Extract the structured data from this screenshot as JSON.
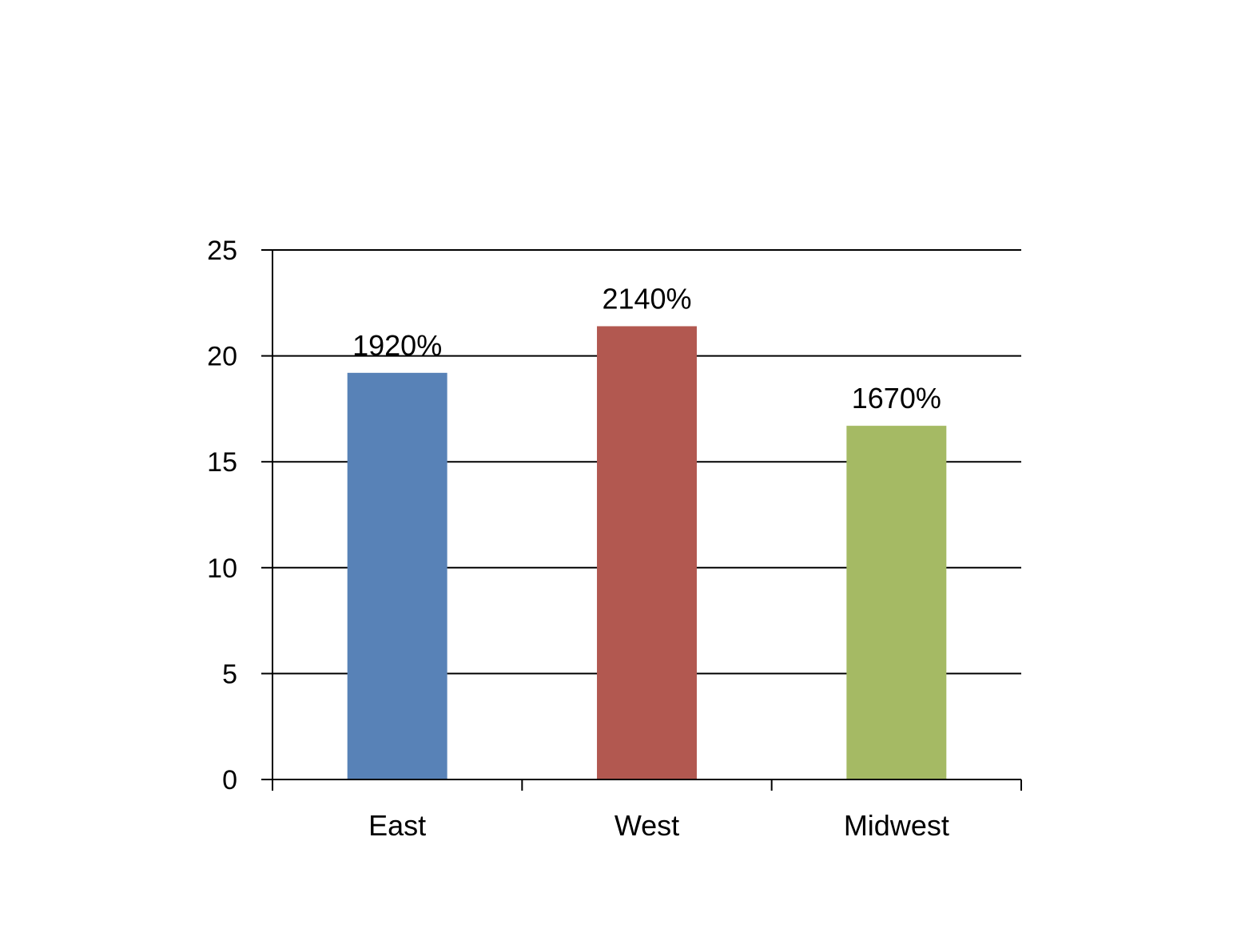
{
  "chart_data": {
    "type": "bar",
    "title": "",
    "xlabel": "",
    "ylabel": "",
    "categories": [
      "East",
      "West",
      "Midwest"
    ],
    "values": [
      19.2,
      21.4,
      16.7
    ],
    "data_labels": [
      "1920%",
      "2140%",
      "1670%"
    ],
    "colors": [
      "#5882B7",
      "#B25850",
      "#A5BA64"
    ],
    "ylim": [
      0,
      25
    ],
    "yticks": [
      0,
      5,
      10,
      15,
      20,
      25
    ],
    "ytick_labels": [
      "0",
      "5",
      "10",
      "15",
      "20",
      "25"
    ],
    "grid": true,
    "legend": "none"
  }
}
